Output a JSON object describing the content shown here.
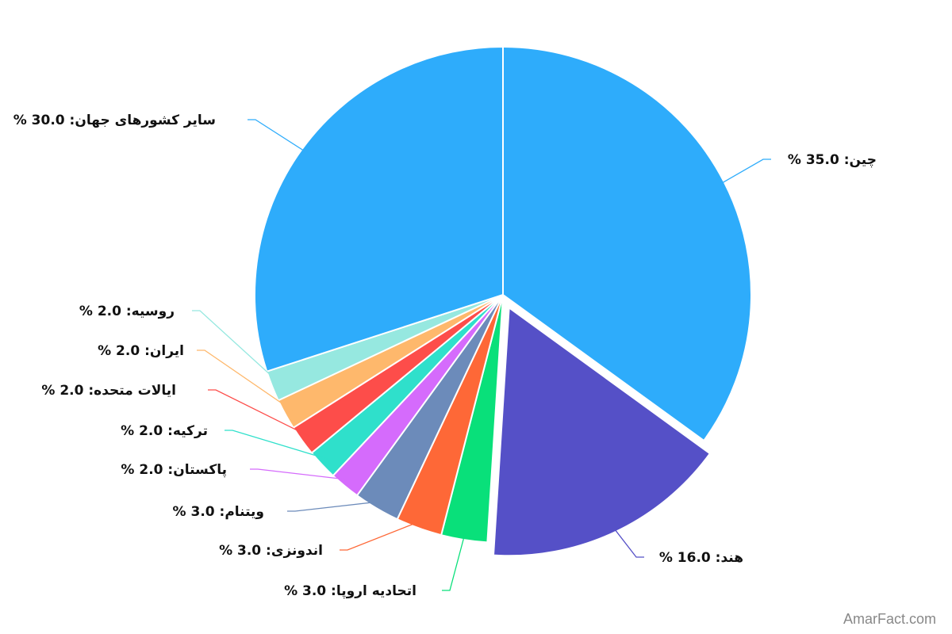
{
  "chart_data": {
    "type": "pie",
    "categories": [
      "چین",
      "هند",
      "اتحادیه اروپا",
      "اندونزی",
      "ویتنام",
      "پاکستان",
      "ترکیه",
      "ایالات متحده",
      "ایران",
      "روسیه",
      "سایر کشورهای جهان"
    ],
    "values": [
      35.0,
      16.0,
      3.0,
      3.0,
      3.0,
      2.0,
      2.0,
      2.0,
      2.0,
      2.0,
      30.0
    ],
    "labels": [
      "% چین: 35.0",
      "% هند: 16.0",
      "% اتحادیه اروپا: 3.0",
      "% اندونزی: 3.0",
      "% ویتنام: 3.0",
      "% پاکستان: 2.0",
      "% ترکیه: 2.0",
      "% ایالات متحده: 2.0",
      "% ایران: 2.0",
      "% روسیه: 2.0",
      "% سایر کشورهای جهان: 30.0"
    ],
    "colors": [
      "#2eacfb",
      "#5550c7",
      "#09e07a",
      "#fe6837",
      "#6c8bba",
      "#d56bfc",
      "#2fe0cb",
      "#fd4d4a",
      "#feb86c",
      "#96e8e0",
      "#2eacfb"
    ],
    "exploded": [
      "هند"
    ]
  },
  "watermark": "AmarFact.com"
}
